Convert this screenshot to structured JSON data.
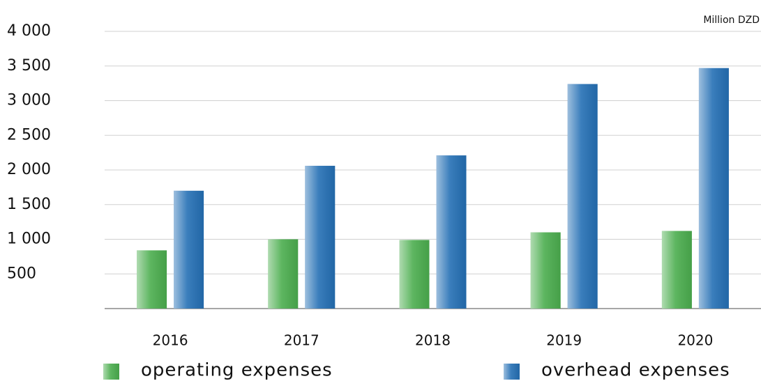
{
  "chart_data": {
    "type": "bar",
    "unit_label": "Million DZD",
    "categories": [
      "2016",
      "2017",
      "2018",
      "2019",
      "2020"
    ],
    "series": [
      {
        "name": "operating expenses",
        "color": "#4cae4f",
        "values": [
          840,
          1000,
          990,
          1100,
          1120
        ]
      },
      {
        "name": "overhead expenses",
        "color": "#2570b5",
        "values": [
          1700,
          2060,
          2210,
          3240,
          3470
        ]
      }
    ],
    "ylim": [
      0,
      4000
    ],
    "yticks": [
      500,
      {
        "value": 1000,
        "label": "1 000"
      },
      {
        "value": 1500,
        "label": "1 500"
      },
      {
        "value": 2000,
        "label": "2 000"
      },
      {
        "value": 2500,
        "label": "2 500"
      },
      {
        "value": 3000,
        "label": "3 000"
      },
      {
        "value": 3500,
        "label": "3 500"
      },
      {
        "value": 4000,
        "label": "4 000"
      }
    ],
    "grid": true,
    "legend": "bottom"
  }
}
